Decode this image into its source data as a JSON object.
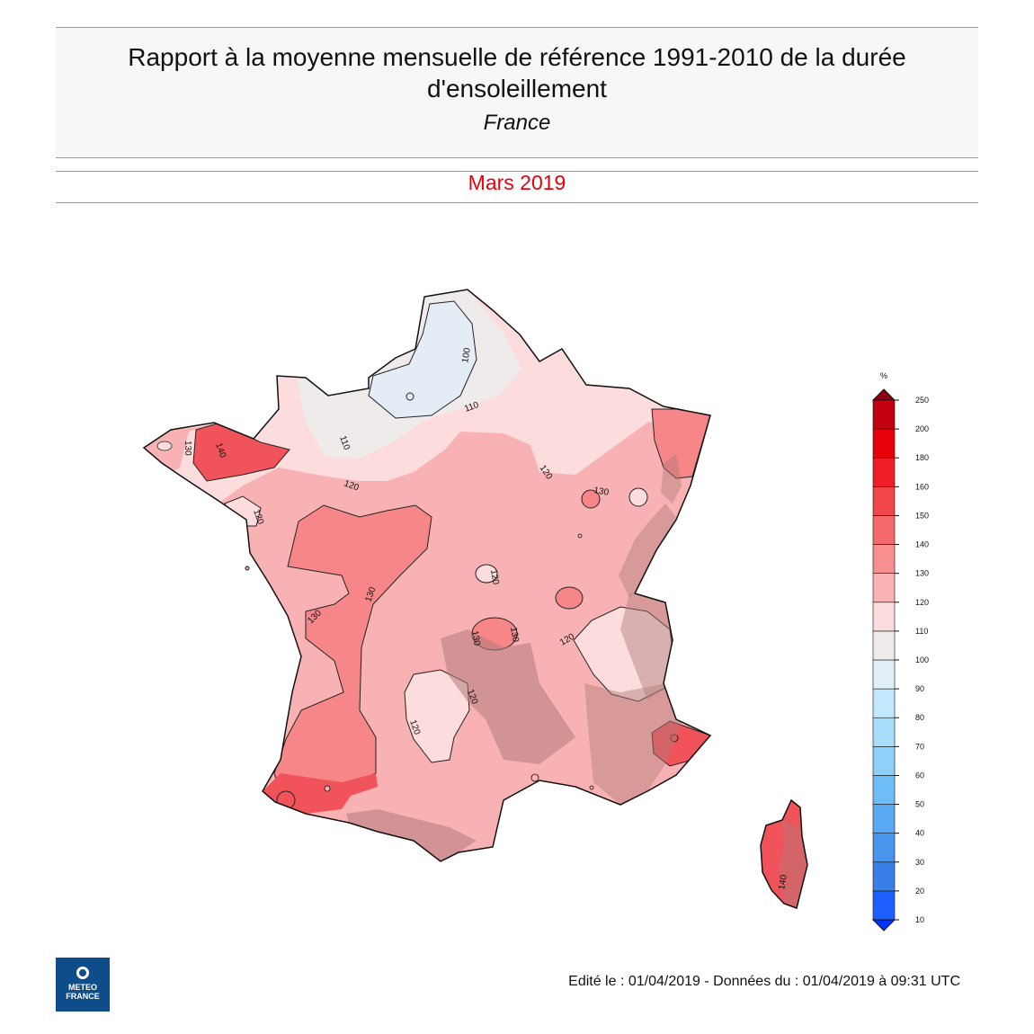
{
  "header": {
    "title_line1": "Rapport à la moyenne mensuelle de référence 1991-2010 de la durée",
    "title_line2": "d'ensoleillement",
    "subtitle": "France",
    "period": "Mars 2019"
  },
  "footer": {
    "text": "Edité le : 01/04/2019 - Données du : 01/04/2019 à 09:31 UTC"
  },
  "logo": {
    "line1": "METEO",
    "line2": "FRANCE"
  },
  "legend": {
    "unit": "%",
    "levels": [
      "10",
      "20",
      "30",
      "40",
      "50",
      "60",
      "70",
      "80",
      "90",
      "100",
      "110",
      "120",
      "130",
      "140",
      "150",
      "160",
      "180",
      "200",
      "250"
    ],
    "colors": [
      "#0033ff",
      "#1f5fff",
      "#3a7fe8",
      "#4a95ee",
      "#5aaaf3",
      "#6fbdf7",
      "#8dd0f9",
      "#a8ddfb",
      "#c2e8fd",
      "#e2eef8",
      "#efebeb",
      "#fbdcdc",
      "#f9b3b4",
      "#f78e8f",
      "#f46a6c",
      "#f1474b",
      "#ef1f28",
      "#e8000b",
      "#c20010",
      "#8c0012"
    ],
    "colors_note": ""
  },
  "map": {
    "region": "France",
    "colors": {
      "c100": "#e4edf6",
      "c110": "#efebeb",
      "c120": "#fcdcdc",
      "c130": "#f9b2b3",
      "c140": "#f68688",
      "c150": "#f0545a",
      "relief": "#b07a7a"
    },
    "contour_labels": [
      "100",
      "110",
      "110",
      "120",
      "120",
      "120",
      "120",
      "120",
      "120",
      "120",
      "130",
      "130",
      "130",
      "130",
      "130",
      "130",
      "140",
      "140"
    ]
  }
}
